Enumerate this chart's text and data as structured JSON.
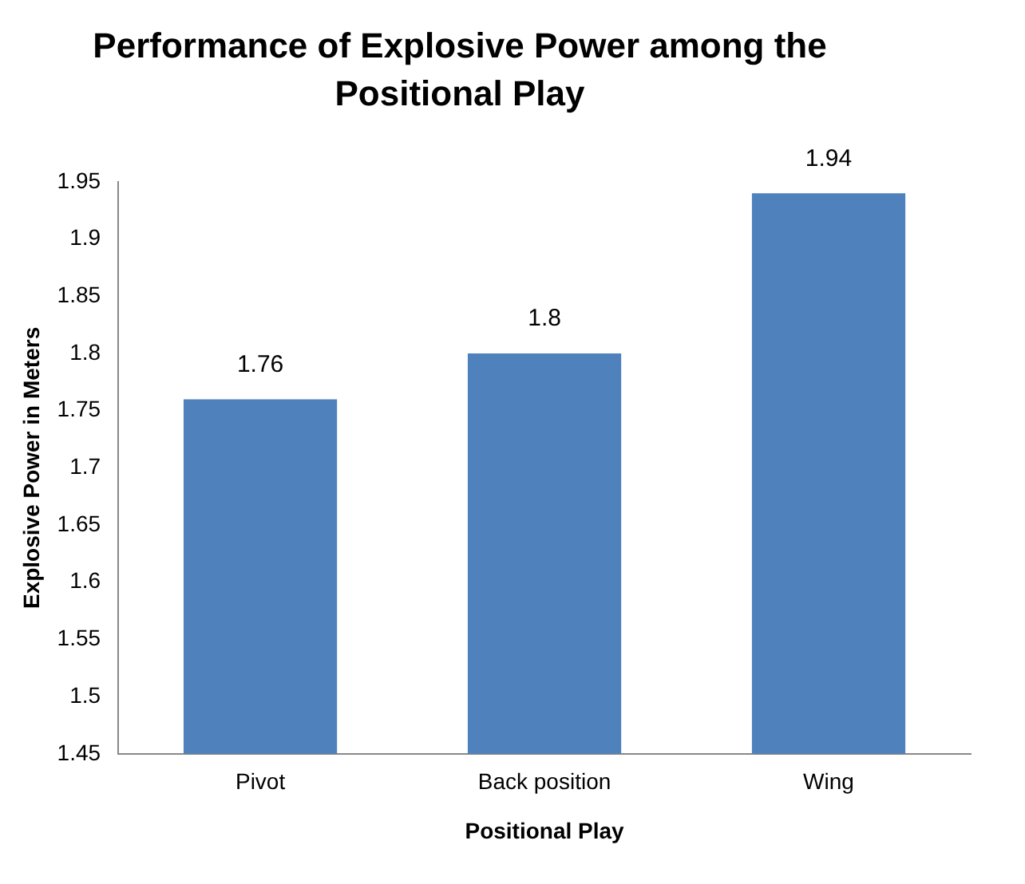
{
  "chart_data": {
    "type": "bar",
    "title": "Performance of Explosive Power among the Positional Play",
    "xlabel": "Positional Play",
    "ylabel": "Explosive Power in Meters",
    "categories": [
      "Pivot",
      "Back position",
      "Wing"
    ],
    "values": [
      1.76,
      1.8,
      1.94
    ],
    "color": "#4f81bd",
    "ylim": [
      1.45,
      1.95
    ],
    "yticks": [
      1.45,
      1.5,
      1.55,
      1.6,
      1.65,
      1.7,
      1.75,
      1.8,
      1.85,
      1.9,
      1.95
    ],
    "grid": false,
    "data_labels": true
  }
}
